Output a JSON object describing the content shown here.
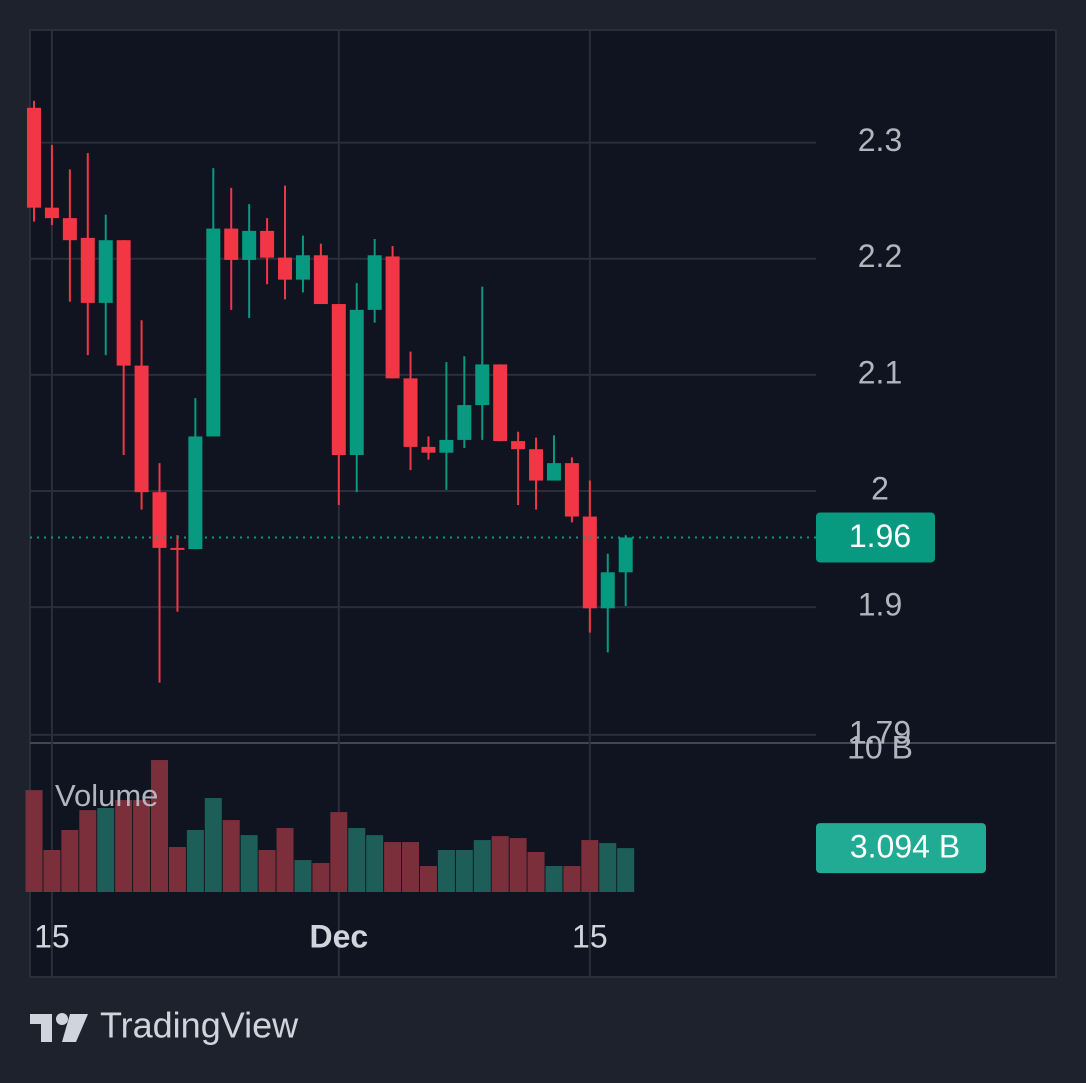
{
  "chart_data": {
    "type": "candlestick",
    "categories": [
      null,
      "15",
      null,
      null,
      null,
      null,
      null,
      null,
      null,
      null,
      null,
      null,
      null,
      null,
      null,
      null,
      null,
      "Dec",
      null,
      null,
      null,
      null,
      null,
      null,
      null,
      null,
      null,
      null,
      null,
      null,
      null,
      "15",
      null,
      null
    ],
    "open": [
      2.33,
      2.244,
      2.235,
      2.218,
      2.162,
      2.216,
      2.108,
      1.999,
      1.951,
      1.95,
      2.047,
      2.226,
      2.199,
      2.224,
      2.201,
      2.182,
      2.203,
      2.161,
      2.031,
      2.156,
      2.202,
      2.097,
      2.038,
      2.033,
      2.044,
      2.074,
      2.109,
      2.043,
      2.036,
      2.009,
      2.024,
      1.978,
      1.899,
      1.93
    ],
    "high": [
      2.336,
      2.298,
      2.277,
      2.291,
      2.238,
      2.216,
      2.147,
      2.024,
      1.962,
      2.08,
      2.278,
      2.261,
      2.247,
      2.235,
      2.263,
      2.22,
      2.213,
      2.161,
      2.179,
      2.217,
      2.211,
      2.12,
      2.047,
      2.111,
      2.116,
      2.176,
      2.109,
      2.051,
      2.046,
      2.048,
      2.029,
      2.009,
      1.946,
      1.962
    ],
    "low": [
      2.232,
      2.229,
      2.163,
      2.117,
      2.117,
      2.031,
      1.984,
      1.835,
      1.896,
      1.95,
      2.047,
      2.156,
      2.149,
      2.178,
      2.165,
      2.171,
      2.161,
      1.988,
      1.999,
      2.145,
      2.097,
      2.018,
      2.027,
      2.001,
      2.037,
      2.044,
      2.043,
      1.988,
      1.984,
      2.009,
      1.973,
      1.878,
      1.861,
      1.901
    ],
    "close": [
      2.244,
      2.235,
      2.216,
      2.162,
      2.216,
      2.108,
      1.999,
      1.951,
      1.95,
      2.047,
      2.226,
      2.199,
      2.224,
      2.201,
      2.182,
      2.203,
      2.161,
      2.031,
      2.156,
      2.203,
      2.097,
      2.038,
      2.033,
      2.044,
      2.074,
      2.109,
      2.043,
      2.036,
      2.009,
      2.024,
      1.978,
      1.899,
      1.93,
      1.96
    ],
    "volume": [
      7.18,
      2.96,
      4.37,
      5.77,
      5.92,
      6.48,
      6.48,
      9.3,
      3.17,
      4.37,
      6.62,
      5.07,
      4.01,
      2.96,
      4.51,
      2.25,
      2.04,
      5.63,
      4.51,
      4.01,
      3.52,
      3.52,
      1.83,
      2.96,
      2.96,
      3.66,
      3.94,
      3.8,
      2.82,
      1.83,
      1.83,
      3.66,
      3.45,
      3.094
    ],
    "volume_labels": [
      null,
      null,
      null,
      null,
      null,
      null,
      null,
      null,
      null,
      null,
      null,
      null,
      null,
      null,
      null,
      null,
      null,
      null,
      null,
      null,
      null,
      null,
      null,
      null,
      null,
      null,
      null,
      null,
      null,
      null,
      null,
      null,
      null,
      "3.094 B"
    ],
    "volume_title": "Volume",
    "up_color": "#089981",
    "down_color": "#f23645",
    "up_volume_color": "#1e5e58",
    "down_volume_color": "#7b2f3b",
    "ylim": [
      1.783,
      2.397
    ],
    "yticks": [
      1.79,
      1.9,
      2.0,
      2.1,
      2.2,
      2.3
    ],
    "volume_ylim": [
      0,
      10.5
    ],
    "volume_ticks": [
      {
        "value": 10,
        "label": "10 B"
      }
    ],
    "grid": true
  },
  "footer": {
    "brand": "TradingView"
  }
}
